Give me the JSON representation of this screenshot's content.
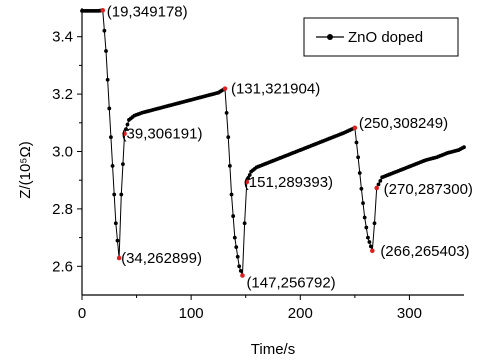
{
  "chart_data": {
    "type": "line",
    "xlabel": "Time/s",
    "ylabel": "Z/(10⁵Ω)",
    "xlim": [
      0,
      350
    ],
    "ylim": [
      2.5,
      3.5
    ],
    "xticks": [
      "0",
      "100",
      "200",
      "300"
    ],
    "yticks": [
      "2.6",
      "2.8",
      "3.0",
      "3.2",
      "3.4"
    ],
    "legend_position": "top-right",
    "series": [
      {
        "name": "ZnO doped",
        "color": "#000000",
        "marker": "circle",
        "x": [
          0,
          5,
          10,
          15,
          19,
          22,
          25,
          28,
          31,
          34,
          36,
          39,
          43,
          48,
          55,
          65,
          75,
          85,
          95,
          105,
          115,
          125,
          131,
          134,
          137,
          140,
          144,
          147,
          149,
          151,
          155,
          160,
          170,
          180,
          190,
          200,
          210,
          220,
          230,
          240,
          250,
          253,
          256,
          259,
          262,
          266,
          268,
          270,
          275,
          285,
          295,
          305,
          315,
          325,
          335,
          345,
          350
        ],
        "y": [
          3.49,
          3.49,
          3.49,
          3.49,
          3.49178,
          3.35,
          3.15,
          2.95,
          2.75,
          2.62899,
          2.85,
          3.06191,
          3.11,
          3.125,
          3.135,
          3.145,
          3.155,
          3.165,
          3.175,
          3.185,
          3.195,
          3.205,
          3.21904,
          3.05,
          2.85,
          2.7,
          2.6,
          2.56792,
          2.75,
          2.89393,
          2.93,
          2.945,
          2.96,
          2.975,
          2.99,
          3.005,
          3.02,
          3.035,
          3.05,
          3.065,
          3.08249,
          2.98,
          2.87,
          2.77,
          2.7,
          2.65403,
          2.75,
          2.873,
          2.91,
          2.925,
          2.94,
          2.955,
          2.97,
          2.98,
          2.995,
          3.005,
          3.015
        ]
      }
    ],
    "highlight_points": [
      {
        "x": 19,
        "y": 3.49178,
        "label": "(19,349178)"
      },
      {
        "x": 34,
        "y": 2.62899,
        "label": "(34,262899)"
      },
      {
        "x": 39,
        "y": 3.06191,
        "label": "(39,306191)"
      },
      {
        "x": 131,
        "y": 3.21904,
        "label": "(131,321904)"
      },
      {
        "x": 147,
        "y": 2.56792,
        "label": "(147,256792)"
      },
      {
        "x": 151,
        "y": 2.89393,
        "label": "(151,289393)"
      },
      {
        "x": 250,
        "y": 3.08249,
        "label": "(250,308249)"
      },
      {
        "x": 266,
        "y": 2.65403,
        "label": "(266,265403)"
      },
      {
        "x": 270,
        "y": 2.873,
        "label": "(270,287300)"
      }
    ],
    "highlight_color": "#e02020"
  }
}
